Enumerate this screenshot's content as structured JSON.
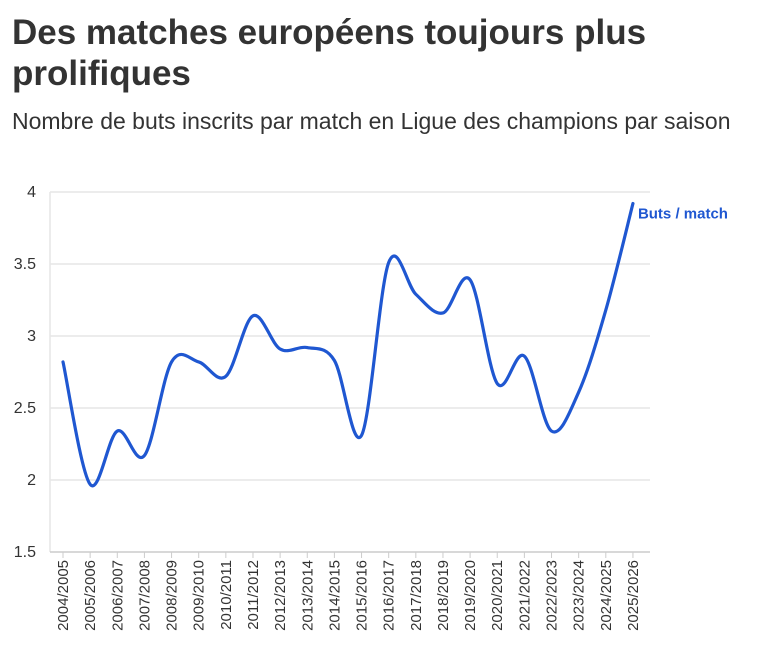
{
  "chart_data": {
    "type": "line",
    "title": "Des matches européens toujours plus prolifiques",
    "subtitle": "Nombre de buts inscrits par match en Ligue des champions par saison",
    "xlabel": "",
    "ylabel": "",
    "ylim": [
      1.5,
      4
    ],
    "yticks": [
      1.5,
      2,
      2.5,
      3,
      3.5,
      4
    ],
    "grid": true,
    "x": [
      "2004/2005",
      "2005/2006",
      "2006/2007",
      "2007/2008",
      "2008/2009",
      "2009/2010",
      "2010/2011",
      "2011/2012",
      "2012/2013",
      "2013/2014",
      "2014/2015",
      "2015/2016",
      "2016/2017",
      "2017/2018",
      "2018/2019",
      "2019/2020",
      "2020/2021",
      "2021/2022",
      "2022/2023",
      "2023/2024",
      "2024/2025",
      "2025/2026"
    ],
    "series": [
      {
        "name": "Buts / match",
        "color": "#1f57d1",
        "values": [
          2.82,
          1.97,
          2.34,
          2.17,
          2.82,
          2.82,
          2.72,
          3.14,
          2.91,
          2.92,
          2.83,
          2.31,
          3.51,
          3.29,
          3.16,
          3.39,
          2.67,
          2.86,
          2.34,
          2.61,
          3.18,
          3.92
        ]
      }
    ]
  }
}
